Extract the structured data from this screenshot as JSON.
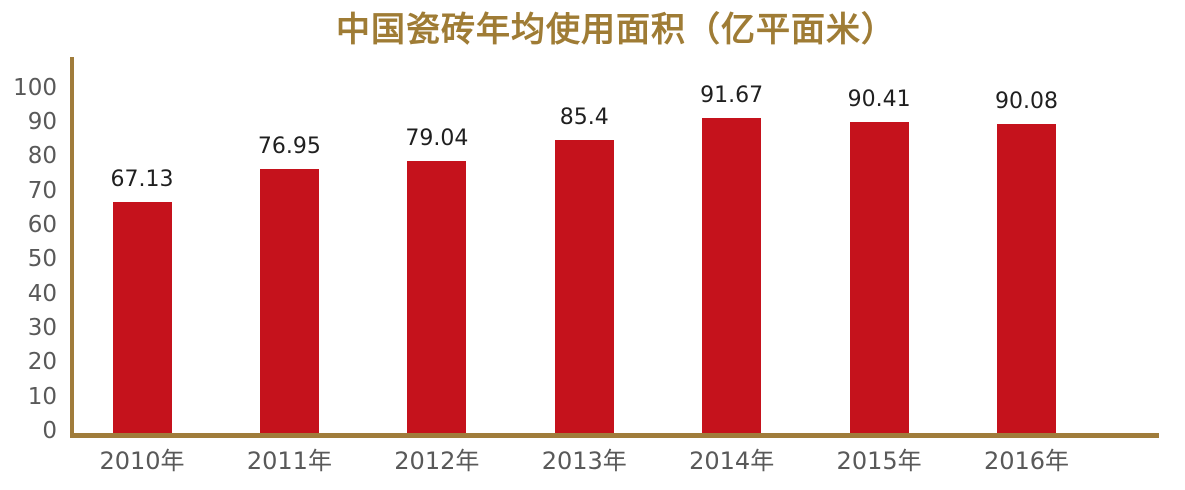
{
  "page": {
    "background": "#FFFFFF"
  },
  "chart_data": {
    "type": "bar",
    "title": "中国瓷砖年均使用面积（亿平面米）",
    "categories": [
      "2010年",
      "2011年",
      "2012年",
      "2013年",
      "2014年",
      "2015年",
      "2016年"
    ],
    "values": [
      67.13,
      76.95,
      79.04,
      85.4,
      91.67,
      90.41,
      90.08
    ],
    "value_labels": [
      "67.13",
      "76.95",
      "79.04",
      "85.4",
      "91.67",
      "90.41",
      "90.08"
    ],
    "xlabel": "",
    "ylabel": "",
    "ylim": [
      0,
      100
    ],
    "y_ticks": [
      "0",
      "10",
      "20",
      "30",
      "40",
      "50",
      "60",
      "70",
      "80",
      "90",
      "100"
    ],
    "grid": false,
    "legend": "none",
    "colors": {
      "bar": "#C5121C",
      "axis": "#A07C3B",
      "title": "#9F7C35",
      "tick_label": "#595959",
      "data_label": "#1F1F1F",
      "background": "#FFFFFF"
    }
  }
}
